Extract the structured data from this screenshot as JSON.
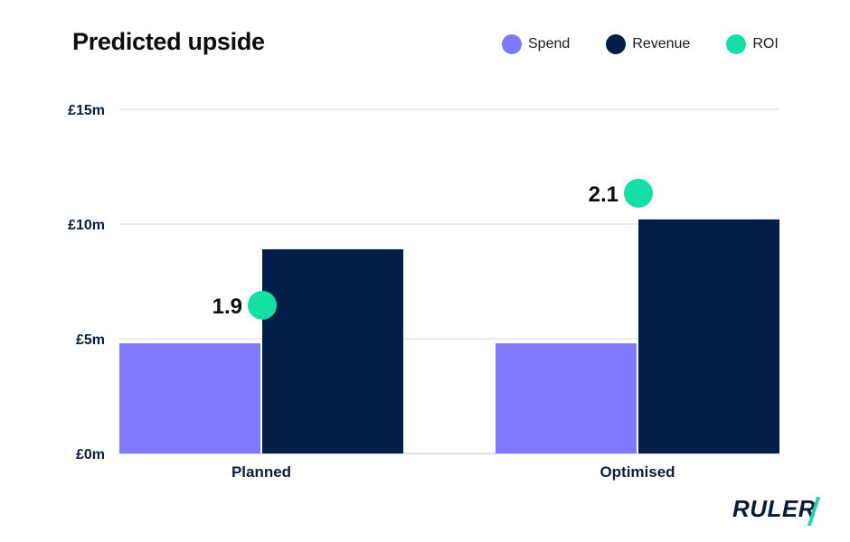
{
  "chart_data": {
    "type": "bar",
    "title": "Predicted upside",
    "categories": [
      "Planned",
      "Optimised"
    ],
    "series": [
      {
        "name": "Spend",
        "values": [
          4.8,
          4.8
        ],
        "color": "#7f78fd"
      },
      {
        "name": "Revenue",
        "values": [
          8.9,
          10.2
        ],
        "color": "#031f47"
      }
    ],
    "roi": {
      "name": "ROI",
      "values": [
        1.9,
        2.1
      ],
      "label_texts": [
        "1.9",
        "2.1"
      ],
      "color": "#14e0a6"
    },
    "ylim": [
      0,
      15
    ],
    "yticks": [
      0,
      5,
      10,
      15
    ],
    "ytick_labels": [
      "£0m",
      "£5m",
      "£10m",
      "£15m"
    ],
    "grid": true,
    "legend_placement": "top-right"
  },
  "logo": {
    "text": "RULER"
  }
}
